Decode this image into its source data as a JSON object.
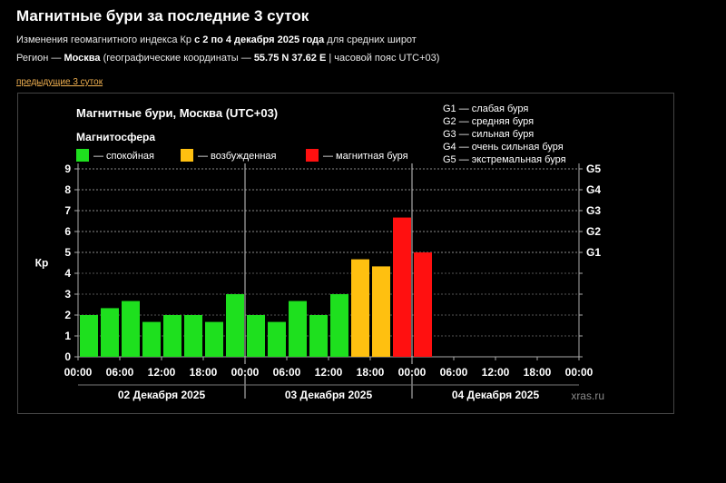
{
  "page": {
    "title": "Магнитные бури за последние 3 суток",
    "line1": {
      "pre": "Изменения геомагнитного индекса Кр ",
      "bold": "с 2 по 4 декабря 2025 года",
      "post": " для средних широт"
    },
    "line2": {
      "pre": "Регион — ",
      "city": "Москва",
      "mid": " (географические координаты — ",
      "coords": "55.75 N 37.62 E",
      "post": " | часовой пояс UTC+03)"
    },
    "prev_link": "предыдущие 3 суток"
  },
  "chart_data": {
    "type": "bar",
    "title": "Магнитные бури, Москва (UTC+03)",
    "legend_title": "Магнитосфера",
    "legend": [
      {
        "label": "— спокойная",
        "color": "#1ee01e"
      },
      {
        "label": "— возбужденная",
        "color": "#ffc010"
      },
      {
        "label": "— магнитная буря",
        "color": "#ff1010"
      }
    ],
    "storm_levels": [
      {
        "label": "G1 — слабая буря"
      },
      {
        "label": "G2 — средняя буря"
      },
      {
        "label": "G3 — сильная буря"
      },
      {
        "label": "G4 — очень сильная буря"
      },
      {
        "label": "G5 — экстремальная буря"
      }
    ],
    "ylabel": "Кр",
    "ylim": [
      0,
      9
    ],
    "y_ticks": [
      "0",
      "1",
      "2",
      "3",
      "4",
      "5",
      "6",
      "7",
      "8",
      "9"
    ],
    "right_ticks": [
      {
        "label": "G1",
        "value": 5
      },
      {
        "label": "G2",
        "value": 6
      },
      {
        "label": "G3",
        "value": 7
      },
      {
        "label": "G4",
        "value": 8
      },
      {
        "label": "G5",
        "value": 9
      }
    ],
    "x_tick_labels": [
      "00:00",
      "06:00",
      "12:00",
      "18:00",
      "00:00",
      "06:00",
      "12:00",
      "18:00",
      "00:00",
      "06:00",
      "12:00",
      "18:00",
      "00:00"
    ],
    "days": [
      "02 Декабря 2025",
      "03 Декабря 2025",
      "04 Декабря 2025"
    ],
    "slots_per_day": 8,
    "values": [
      2.0,
      2.33,
      2.67,
      1.67,
      2.0,
      2.0,
      1.67,
      3.0,
      2.0,
      1.67,
      2.67,
      2.0,
      3.0,
      4.67,
      4.33,
      6.67,
      5.0
    ],
    "colors": [
      "#1ee01e",
      "#1ee01e",
      "#1ee01e",
      "#1ee01e",
      "#1ee01e",
      "#1ee01e",
      "#1ee01e",
      "#1ee01e",
      "#1ee01e",
      "#1ee01e",
      "#1ee01e",
      "#1ee01e",
      "#1ee01e",
      "#ffc010",
      "#ffc010",
      "#ff1010",
      "#ff1010"
    ],
    "grid": true,
    "watermark": "xras.ru"
  }
}
